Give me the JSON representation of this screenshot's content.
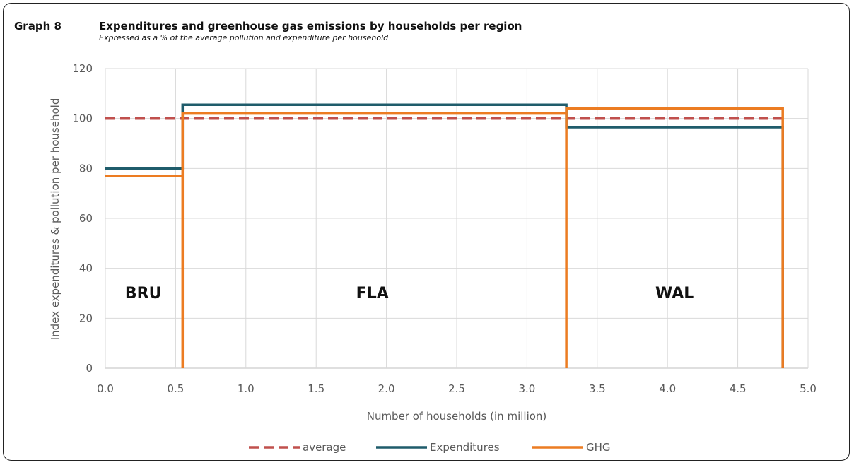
{
  "header": {
    "label": "Graph 8",
    "title": "Expenditures and greenhouse gas emissions by households per region",
    "subtitle": "Expressed as a % of the average pollution and expenditure per household"
  },
  "colors": {
    "average": "#c0504d",
    "expenditures": "#1f5c6b",
    "ghg": "#ec7c22",
    "grid": "#d9d9d9",
    "text": "#595959"
  },
  "chart_data": {
    "type": "line",
    "title": "Expenditures and greenhouse gas emissions by households per region",
    "subtitle": "Expressed as a % of the average pollution and expenditure per household",
    "xlabel": "Number of households (in million)",
    "ylabel": "Index expenditures & pollution per household",
    "xlim": [
      0,
      5
    ],
    "ylim": [
      0,
      120
    ],
    "x_ticks": [
      "0.0",
      "0.5",
      "1.0",
      "1.5",
      "2.0",
      "2.5",
      "3.0",
      "3.5",
      "4.0",
      "4.5",
      "5.0"
    ],
    "y_ticks": [
      "0",
      "20",
      "40",
      "60",
      "80",
      "100",
      "120"
    ],
    "grid": true,
    "legend_position": "bottom",
    "region_labels": [
      {
        "text": "BRU",
        "x": 0.27,
        "y": 28
      },
      {
        "text": "FLA",
        "x": 1.9,
        "y": 28
      },
      {
        "text": "WAL",
        "x": 4.05,
        "y": 28
      }
    ],
    "series": [
      {
        "name": "average",
        "style": "dashed",
        "x": [
          0,
          4.82
        ],
        "y": [
          100,
          100
        ]
      },
      {
        "name": "Expenditures",
        "style": "step",
        "x": [
          0,
          0.55,
          0.55,
          3.28,
          3.28,
          4.82,
          4.82
        ],
        "y": [
          80,
          80,
          105.5,
          105.5,
          96.5,
          96.5,
          0
        ]
      },
      {
        "name": "GHG",
        "style": "step",
        "x": [
          0,
          0.55,
          0.55,
          0.55,
          3.28,
          3.28,
          3.28,
          4.82,
          4.82
        ],
        "y": [
          77,
          77,
          0,
          102,
          102,
          0,
          104,
          104,
          0
        ]
      }
    ]
  }
}
